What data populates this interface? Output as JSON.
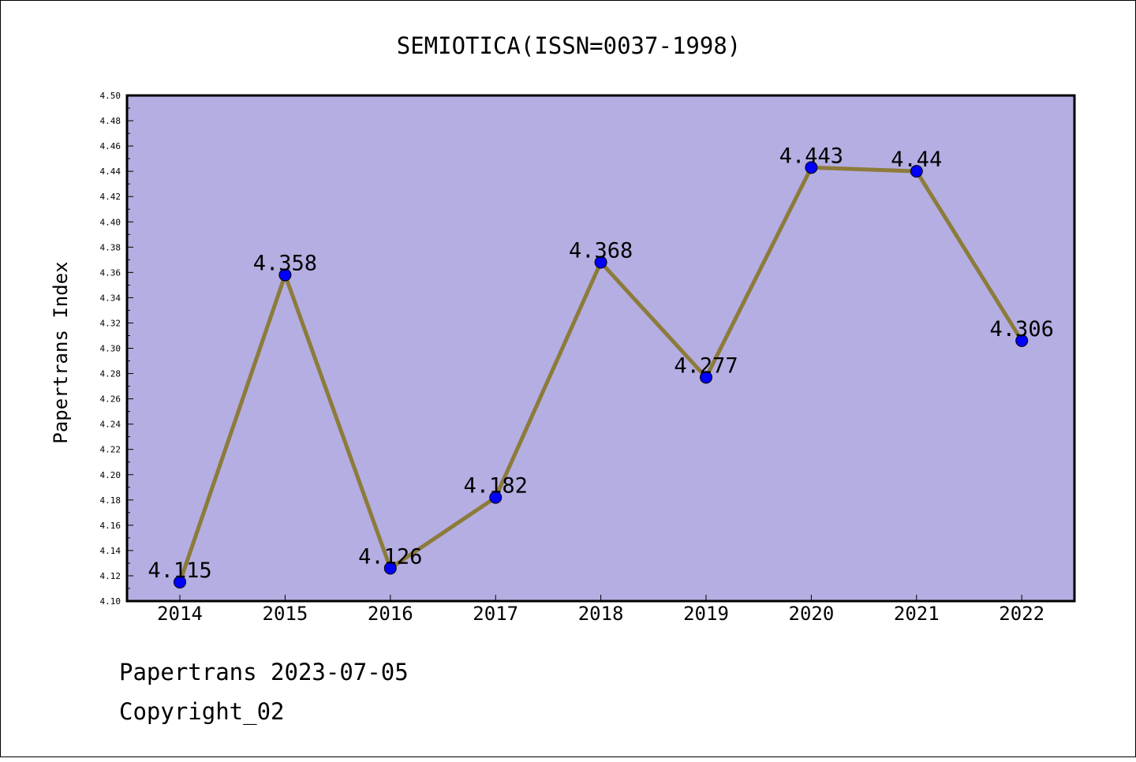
{
  "chart_data": {
    "type": "line",
    "title": "SEMIOTICA(ISSN=0037-1998)",
    "xlabel": "",
    "ylabel": "Papertrans Index",
    "categories": [
      "2014",
      "2015",
      "2016",
      "2017",
      "2018",
      "2019",
      "2020",
      "2021",
      "2022"
    ],
    "series": [
      {
        "values": [
          4.115,
          4.358,
          4.126,
          4.182,
          4.368,
          4.277,
          4.443,
          4.44,
          4.306
        ],
        "labels": [
          "4.115",
          "4.358",
          "4.126",
          "4.182",
          "4.368",
          "4.277",
          "4.443",
          "4.44",
          "4.306"
        ]
      }
    ],
    "ylim": [
      4.1,
      4.5
    ],
    "yticks": [
      "4.10",
      "4.12",
      "4.14",
      "4.16",
      "4.18",
      "4.20",
      "4.22",
      "4.24",
      "4.26",
      "4.28",
      "4.30",
      "4.32",
      "4.34",
      "4.36",
      "4.38",
      "4.40",
      "4.42",
      "4.44",
      "4.46",
      "4.48",
      "4.50"
    ],
    "grid": false,
    "legend": "none",
    "colors": {
      "plot_background": "#b4aee2",
      "line": "#8c7b3a",
      "marker": "#0000ff"
    }
  },
  "footer": {
    "line1": "Papertrans 2023-07-05",
    "line2": "Copyright_02"
  }
}
